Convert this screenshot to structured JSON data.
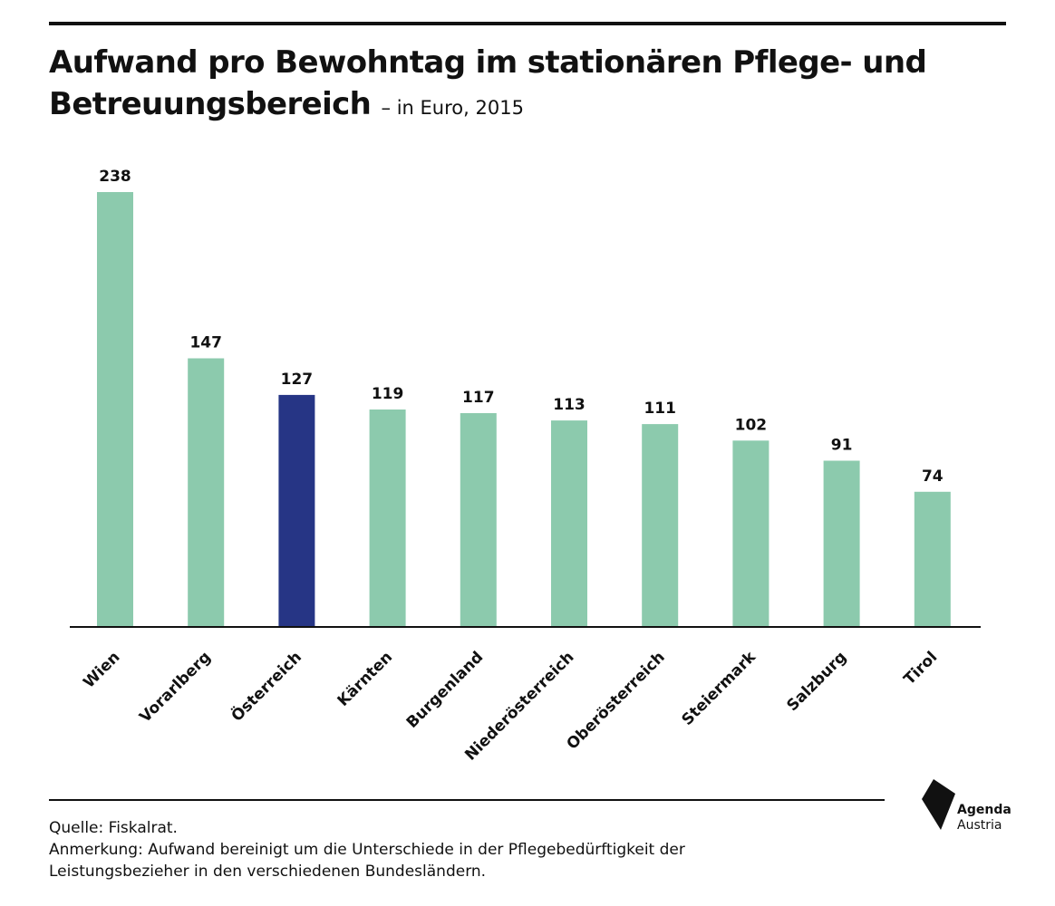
{
  "title": {
    "main": "Aufwand pro Bewohntag im stationären Pflege- und Betreuungsbereich",
    "sub": "– in Euro, 2015"
  },
  "chart_data": {
    "type": "bar",
    "categories": [
      "Wien",
      "Vorarlberg",
      "Österreich",
      "Kärnten",
      "Burgenland",
      "Niederösterreich",
      "Oberösterreich",
      "Steiermark",
      "Salzburg",
      "Tirol"
    ],
    "values": [
      238,
      147,
      127,
      119,
      117,
      113,
      111,
      102,
      91,
      74
    ],
    "highlight": "Österreich",
    "colors": {
      "bar": "#8ccaad",
      "highlight": "#263585",
      "text": "#111111"
    },
    "ylim": [
      0,
      238
    ],
    "grid": false,
    "data_labels": true
  },
  "notes": {
    "source": "Quelle: Fiskalrat.",
    "remark_line1": "Anmerkung: Aufwand bereinigt um die Unterschiede in der Pflegebedürftigkeit der",
    "remark_line2": "Leistungsbezieher in den verschiedenen Bundesländern."
  },
  "logo": {
    "line1": "Agenda",
    "line2": "Austria",
    "icon": "agenda-austria-logo-icon"
  }
}
